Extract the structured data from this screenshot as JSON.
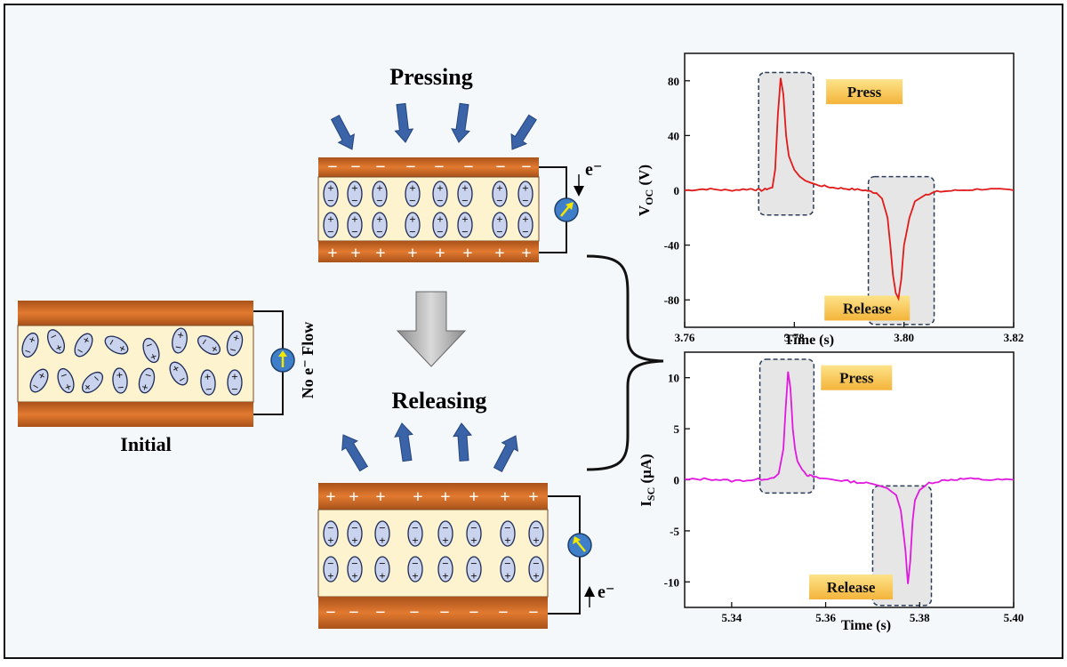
{
  "diagram": {
    "initial_label": "Initial",
    "no_flow_label": "No e⁻ Flow",
    "pressing_label": "Pressing",
    "releasing_label": "Releasing",
    "electron_label": "e⁻",
    "colors": {
      "background": "#f4f8fb",
      "electrode": "#e0742c",
      "electrode_dark": "#a9521a",
      "dielectric": "#fdf3cf",
      "dipole_fill": "#c9d3ee",
      "arrow_blue": "#3a63a8",
      "meter_blue": "#3f7fc9",
      "meter_arrow": "#f3e600",
      "voc_line": "#e11a1a",
      "isc_line": "#e118e0",
      "callout_fill": "#f9c74f"
    }
  },
  "chart_data": [
    {
      "type": "line",
      "title": "",
      "xlabel": "Time (s)",
      "ylabel_main": "V",
      "ylabel_sub": "OC",
      "ylabel_unit": " (V)",
      "xlim": [
        3.76,
        3.82
      ],
      "ylim": [
        -100,
        100
      ],
      "xticks": [
        "3.76",
        "3.78",
        "3.80",
        "3.82"
      ],
      "xtick_values": [
        3.76,
        3.78,
        3.8,
        3.82
      ],
      "yticks": [
        "80",
        "40",
        "0",
        "-40",
        "-80"
      ],
      "ytick_values": [
        80,
        40,
        0,
        -40,
        -80
      ],
      "annotations": [
        "Press",
        "Release"
      ],
      "series": [
        {
          "x": [
            3.76,
            3.764,
            3.768,
            3.772,
            3.774,
            3.776,
            3.7765,
            3.777,
            3.7775,
            3.778,
            3.7785,
            3.779,
            3.78,
            3.781,
            3.782,
            3.784,
            3.787,
            3.79,
            3.793,
            3.795,
            3.796,
            3.797,
            3.7975,
            3.798,
            3.7985,
            3.799,
            3.7995,
            3.8,
            3.801,
            3.802,
            3.804,
            3.806,
            3.81,
            3.815,
            3.82
          ],
          "y": [
            0,
            1,
            0,
            1,
            0,
            2,
            15,
            55,
            82,
            70,
            40,
            25,
            15,
            10,
            7,
            4,
            2,
            1,
            0,
            -2,
            -6,
            -20,
            -40,
            -62,
            -75,
            -79,
            -65,
            -40,
            -20,
            -8,
            -3,
            -1,
            0,
            1,
            0
          ]
        }
      ]
    },
    {
      "type": "line",
      "title": "",
      "xlabel": "Time (s)",
      "ylabel_main": "I",
      "ylabel_sub": "SC",
      "ylabel_unit": " (μA)",
      "xlim": [
        5.33,
        5.4
      ],
      "ylim": [
        -12.5,
        12.5
      ],
      "xticks": [
        "5.34",
        "5.36",
        "5.38",
        "5.40"
      ],
      "xtick_values": [
        5.34,
        5.36,
        5.38,
        5.4
      ],
      "yticks": [
        "10",
        "5",
        "0",
        "-5",
        "-10"
      ],
      "ytick_values": [
        10,
        5,
        0,
        -5,
        -10
      ],
      "annotations": [
        "Press",
        "Release"
      ],
      "series": [
        {
          "x": [
            5.33,
            5.335,
            5.34,
            5.345,
            5.349,
            5.35,
            5.351,
            5.3515,
            5.352,
            5.3525,
            5.353,
            5.3535,
            5.354,
            5.355,
            5.356,
            5.358,
            5.362,
            5.366,
            5.37,
            5.373,
            5.375,
            5.376,
            5.377,
            5.3775,
            5.378,
            5.3785,
            5.379,
            5.38,
            5.382,
            5.386,
            5.39,
            5.395,
            5.4
          ],
          "y": [
            0,
            0.1,
            -0.1,
            0,
            0.2,
            0.6,
            3,
            7,
            10.6,
            9,
            5,
            3,
            1.8,
            1,
            0.5,
            0.2,
            0,
            -0.2,
            -0.4,
            -0.8,
            -1.5,
            -3,
            -7,
            -10.2,
            -8,
            -4,
            -2,
            -1,
            -0.3,
            0,
            0.1,
            0,
            0
          ]
        }
      ]
    }
  ]
}
